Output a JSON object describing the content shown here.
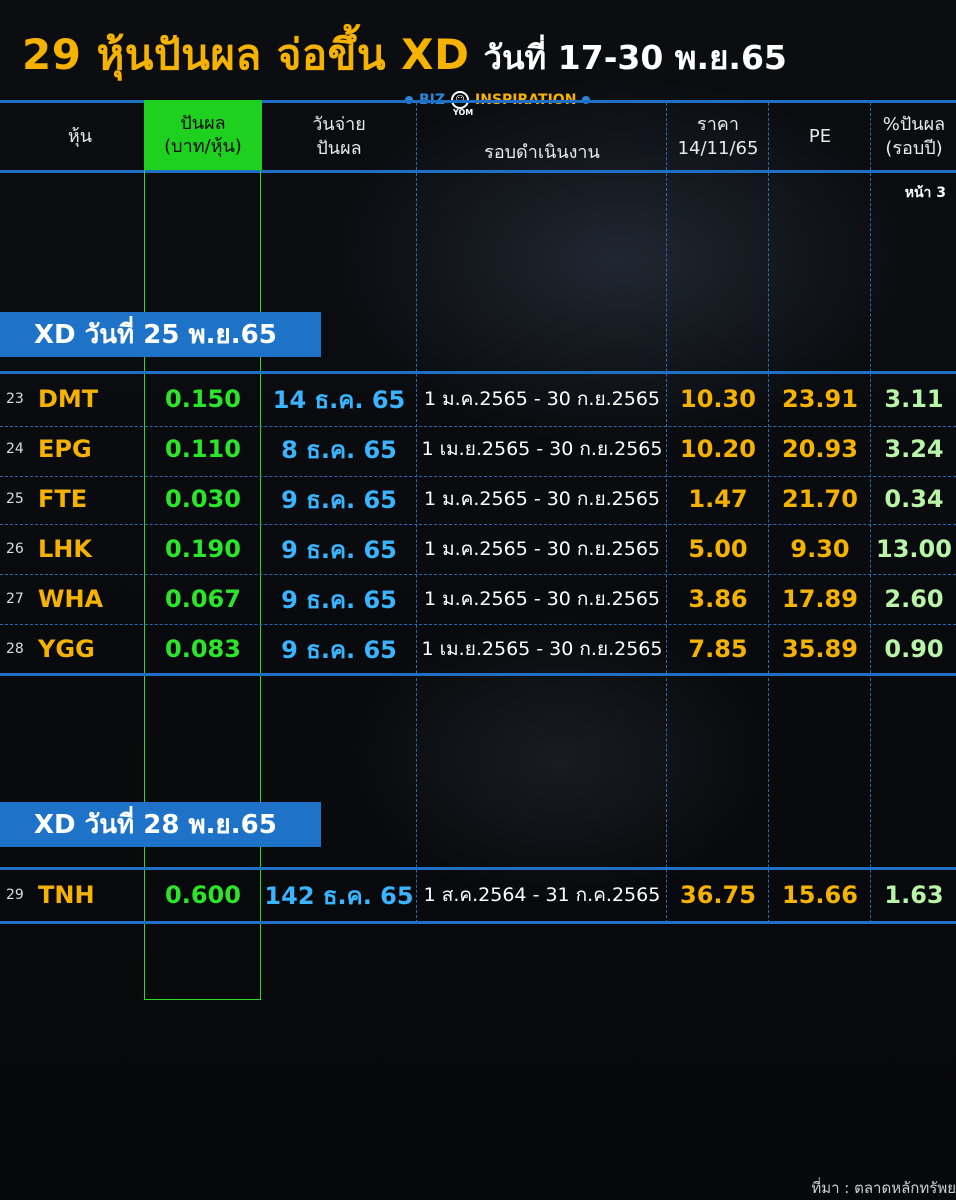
{
  "title": {
    "main": "29 หุ้นปันผล จ่อขึ้น XD",
    "date": "วันที่ 17-30 พ.ย.65"
  },
  "brand": {
    "biz": "BIZ",
    "name": "INSPIRATION",
    "sub": "YOM",
    "logo_icon": "smile-face-icon",
    "accent": "#1f6fc4"
  },
  "headers": {
    "stock": "หุ้น",
    "dividend_1": "ปันผล",
    "dividend_2": "(บาท/หุ้น)",
    "paydate_1": "วันจ่าย",
    "paydate_2": "ปันผล",
    "period": "รอบดำเนินงาน",
    "price_1": "ราคา",
    "price_2": "14/11/65",
    "pe": "PE",
    "yield_1": "%ปันผล",
    "yield_2": "(รอบปี)"
  },
  "page_no": "หน้า 3",
  "sections": [
    {
      "label": "XD วันที่ 25 พ.ย.65",
      "rows": [
        {
          "no": "23",
          "symbol": "DMT",
          "dividend": "0.150",
          "paydate": "14 ธ.ค. 65",
          "period": "1 ม.ค.2565 - 30 ก.ย.2565",
          "price": "10.30",
          "pe": "23.91",
          "yield": "3.11"
        },
        {
          "no": "24",
          "symbol": "EPG",
          "dividend": "0.110",
          "paydate": "8 ธ.ค. 65",
          "period": "1 เม.ย.2565 - 30 ก.ย.2565",
          "price": "10.20",
          "pe": "20.93",
          "yield": "3.24"
        },
        {
          "no": "25",
          "symbol": "FTE",
          "dividend": "0.030",
          "paydate": "9 ธ.ค. 65",
          "period": "1 ม.ค.2565 - 30 ก.ย.2565",
          "price": "1.47",
          "pe": "21.70",
          "yield": "0.34"
        },
        {
          "no": "26",
          "symbol": "LHK",
          "dividend": "0.190",
          "paydate": "9 ธ.ค. 65",
          "period": "1 ม.ค.2565 - 30 ก.ย.2565",
          "price": "5.00",
          "pe": "9.30",
          "yield": "13.00"
        },
        {
          "no": "27",
          "symbol": "WHA",
          "dividend": "0.067",
          "paydate": "9 ธ.ค. 65",
          "period": "1 ม.ค.2565 - 30 ก.ย.2565",
          "price": "3.86",
          "pe": "17.89",
          "yield": "2.60"
        },
        {
          "no": "28",
          "symbol": "YGG",
          "dividend": "0.083",
          "paydate": "9 ธ.ค. 65",
          "period": "1 เม.ย.2565 - 30 ก.ย.2565",
          "price": "7.85",
          "pe": "35.89",
          "yield": "0.90"
        }
      ]
    },
    {
      "label": "XD วันที่ 28 พ.ย.65",
      "rows": [
        {
          "no": "29",
          "symbol": "TNH",
          "dividend": "0.600",
          "paydate": "142 ธ.ค. 65",
          "period": "1 ส.ค.2564 - 31 ก.ค.2565",
          "price": "36.75",
          "pe": "15.66",
          "yield": "1.63"
        }
      ]
    }
  ],
  "source": "ที่มา : ตลาดหลักทรัพย",
  "colors": {
    "gold": "#f5b300",
    "green": "#2be52b",
    "blue": "#3ab4ff",
    "header_green": "#1fd11f",
    "badge": "#1e73c9"
  }
}
